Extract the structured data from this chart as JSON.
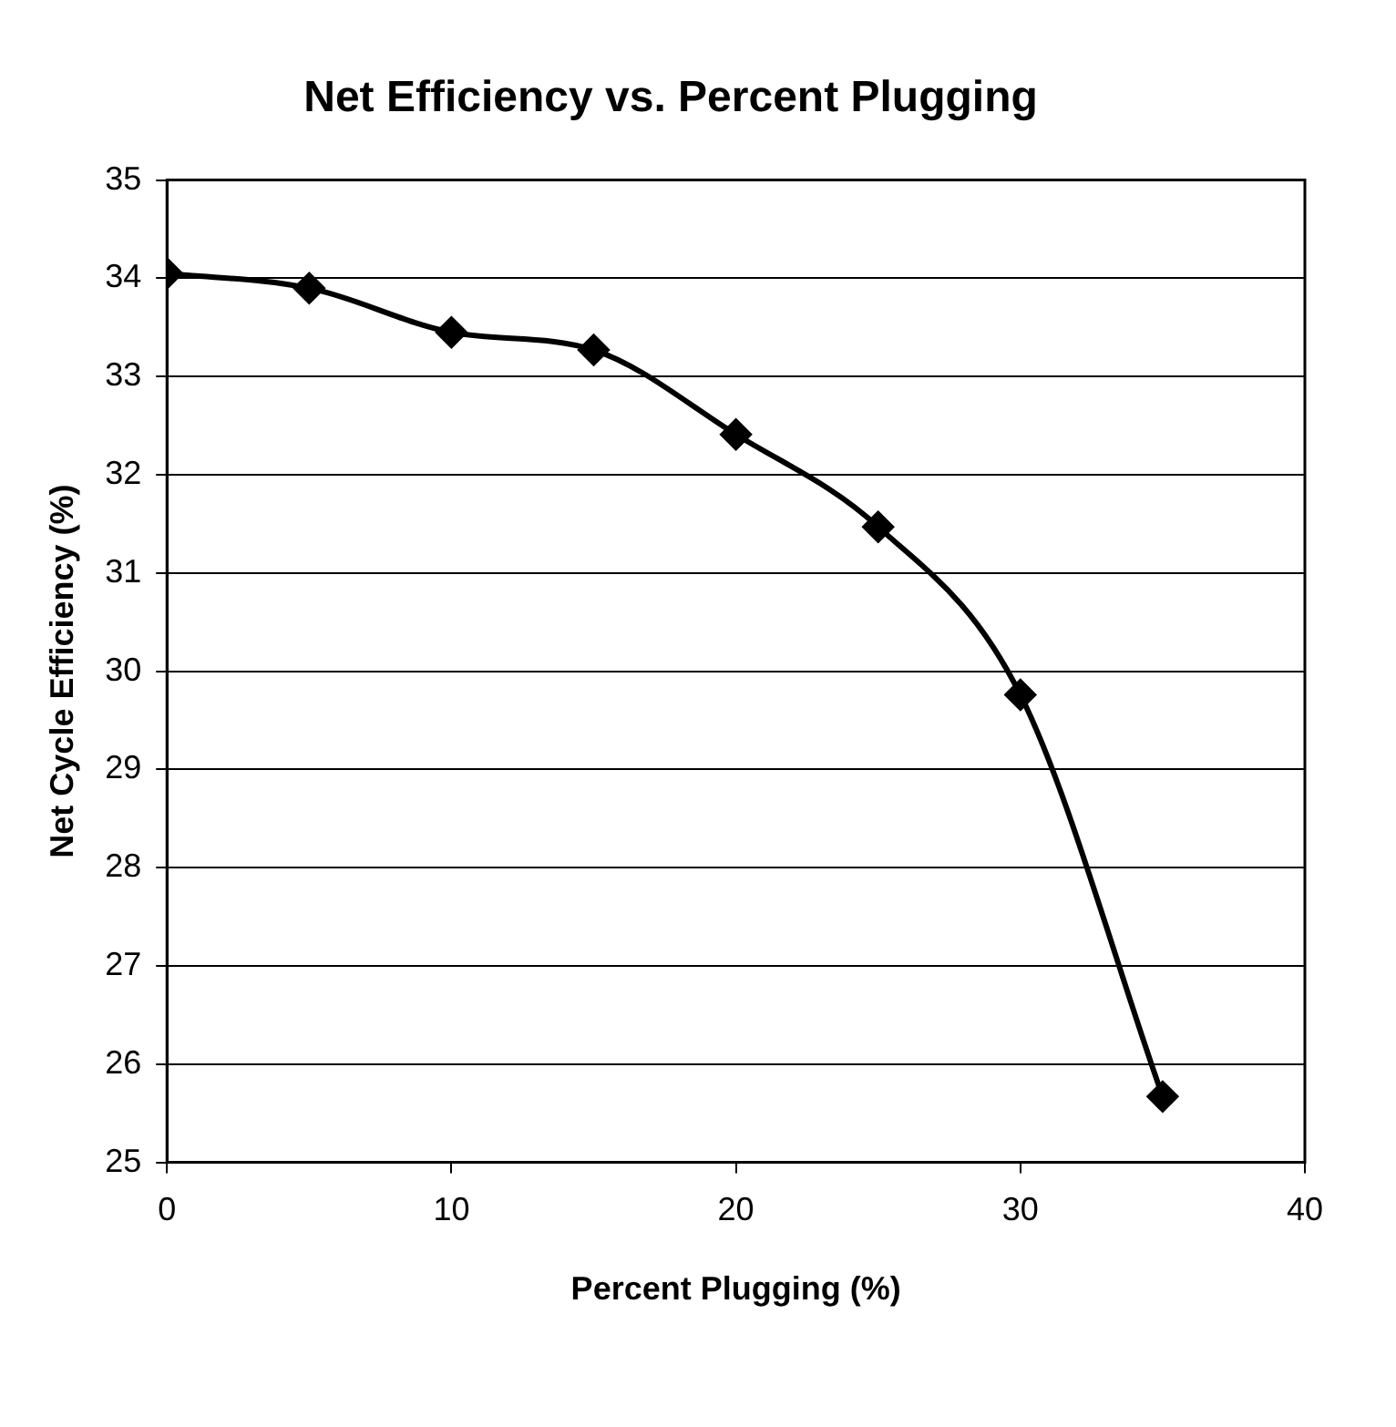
{
  "chart_data": {
    "type": "line",
    "title": "Net Efficiency vs. Percent Plugging",
    "xlabel": "Percent Plugging (%)",
    "ylabel": "Net Cycle Efficiency (%)",
    "x": [
      0,
      5,
      10,
      15,
      20,
      25,
      30,
      35
    ],
    "series": [
      {
        "color": "#000000",
        "values": [
          34.05,
          33.9,
          33.45,
          33.27,
          32.41,
          31.47,
          29.76,
          25.67
        ]
      }
    ],
    "xlim": [
      0,
      40
    ],
    "xticks": [
      0,
      10,
      20,
      30,
      40
    ],
    "ylim": [
      25,
      35
    ],
    "yticks": [
      25,
      26,
      27,
      28,
      29,
      30,
      31,
      32,
      33,
      34,
      35
    ],
    "grid": "y",
    "legend": false,
    "marker": "diamond",
    "line_style": "solid"
  }
}
